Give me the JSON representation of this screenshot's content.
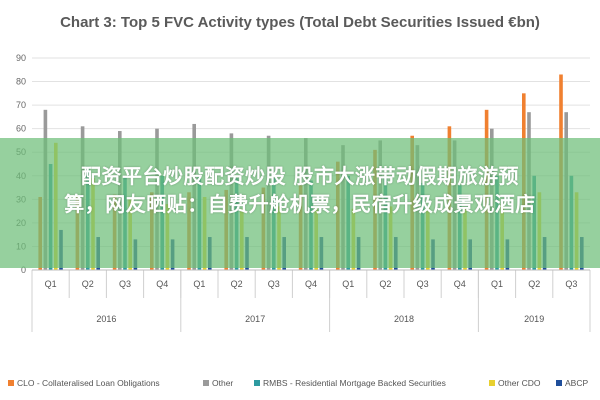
{
  "chart_data": {
    "type": "bar",
    "title": "Chart 3: Top 5 FVC Activity types (Total Debt Securities Issued €bn)",
    "xlabel": "",
    "ylabel": "",
    "ylim": [
      0,
      90
    ],
    "yticks": [
      0,
      10,
      20,
      30,
      40,
      50,
      60,
      70,
      80,
      90
    ],
    "grid": true,
    "legend_position": "bottom",
    "categories": [
      "Q1",
      "Q2",
      "Q3",
      "Q4",
      "Q1",
      "Q2",
      "Q3",
      "Q4",
      "Q1",
      "Q2",
      "Q3",
      "Q4",
      "Q1",
      "Q2",
      "Q3"
    ],
    "years": [
      {
        "label": "2016",
        "count": 4
      },
      {
        "label": "2017",
        "count": 4
      },
      {
        "label": "2018",
        "count": 4
      },
      {
        "label": "2019",
        "count": 3
      }
    ],
    "series": [
      {
        "name": "CLO - Collateralised Loan Obligations",
        "color": "#f08030",
        "values": [
          31,
          31,
          32,
          33,
          33,
          34,
          35,
          36,
          46,
          51,
          57,
          61,
          68,
          75,
          83
        ]
      },
      {
        "name": "Other",
        "color": "#9a9a9a",
        "values": [
          68,
          61,
          59,
          60,
          62,
          58,
          57,
          56,
          53,
          55,
          53,
          55,
          60,
          67,
          67
        ]
      },
      {
        "name": "RMBS - Residential Mortgage Backed Securities",
        "color": "#2e9aa0",
        "values": [
          45,
          44,
          40,
          40,
          40,
          39,
          39,
          38,
          40,
          39,
          37,
          36,
          40,
          40,
          40
        ]
      },
      {
        "name": "Other CDO",
        "color": "#e8d030",
        "values": [
          54,
          39,
          30,
          28,
          31,
          26,
          27,
          27,
          26,
          27,
          27,
          26,
          28,
          33,
          33
        ]
      },
      {
        "name": "ABCP",
        "color": "#1f4e9a",
        "values": [
          17,
          14,
          13,
          13,
          14,
          14,
          14,
          14,
          14,
          14,
          13,
          13,
          13,
          14,
          14
        ]
      }
    ]
  },
  "overlay": {
    "line1": "配资平台炒股配资炒股 股市大涨带动假期旅游预",
    "line2": "算，网友晒贴：自费升舱机票，民宿升级成景观酒店"
  }
}
